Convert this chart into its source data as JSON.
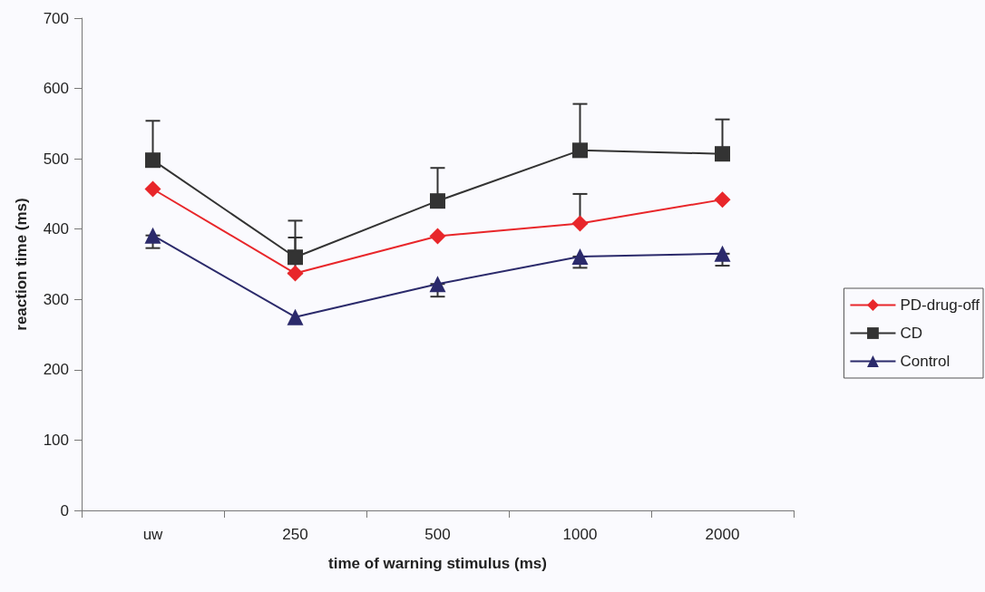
{
  "chart_data": {
    "type": "line",
    "xlabel": "time of warning stimulus (ms)",
    "ylabel": "reaction time (ms)",
    "categories": [
      "uw",
      "250",
      "500",
      "1000",
      "2000"
    ],
    "series": [
      {
        "name": "PD-drug-off",
        "color": "#e8262a",
        "marker": "diamond",
        "values": [
          457,
          337,
          390,
          408,
          442
        ],
        "errors": [
          null,
          [
            337,
            388
          ],
          null,
          [
            408,
            450
          ],
          null
        ]
      },
      {
        "name": "CD",
        "color": "#333333",
        "marker": "square",
        "values": [
          498,
          360,
          440,
          512,
          507
        ],
        "errors": [
          [
            498,
            554
          ],
          [
            360,
            412
          ],
          [
            440,
            487
          ],
          [
            512,
            578
          ],
          [
            507,
            556
          ]
        ]
      },
      {
        "name": "Control",
        "color": "#2b2a6b",
        "marker": "triangle",
        "values": [
          391,
          275,
          322,
          361,
          365
        ],
        "errors": [
          [
            373,
            391
          ],
          null,
          [
            304,
            322
          ],
          [
            345,
            361
          ],
          [
            348,
            365
          ]
        ]
      }
    ],
    "ylim": [
      0,
      700
    ],
    "yticks": [
      0,
      100,
      200,
      300,
      400,
      500,
      600,
      700
    ],
    "grid": false,
    "legend": "right",
    "line_style": "solid"
  }
}
